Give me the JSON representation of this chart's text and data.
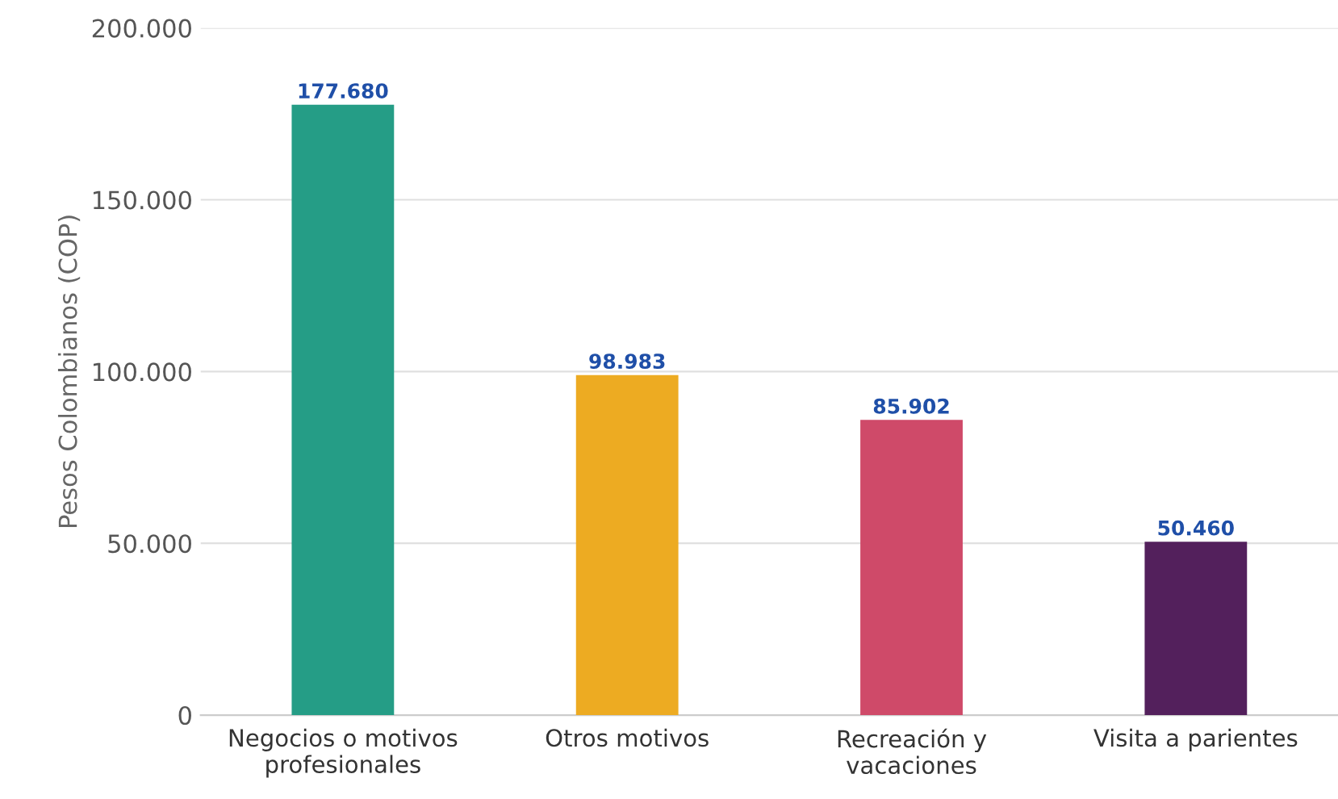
{
  "chart_data": {
    "type": "bar",
    "ylabel": "Pesos Colombianos (COP)",
    "categories": [
      "Negocios o motivos\nprofesionales",
      "Otros motivos",
      "Recreación y\nvacaciones",
      "Visita a parientes"
    ],
    "values": [
      177680,
      98983,
      85902,
      50460
    ],
    "colors": [
      "#259d86",
      "#edab22",
      "#cf4a69",
      "#53205c"
    ],
    "value_labels": [
      "177.680",
      "98.983",
      "85.902",
      "50.460"
    ],
    "ylim": [
      0,
      200000
    ],
    "yticks": [
      {
        "value": 0,
        "label": "0"
      },
      {
        "value": 50000,
        "label": "50.000"
      },
      {
        "value": 100000,
        "label": "100.000"
      },
      {
        "value": 150000,
        "label": "150.000"
      },
      {
        "value": 200000,
        "label": "200.000"
      }
    ],
    "grid": "y",
    "legend": false
  }
}
